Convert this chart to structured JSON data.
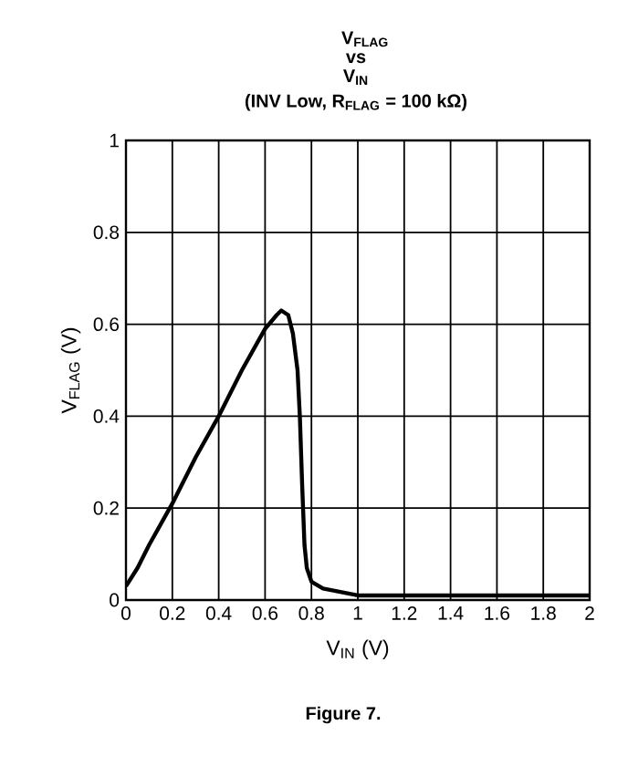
{
  "chart_data": {
    "type": "line",
    "title": "V$_{FLAG}$ vs V$_{IN}$",
    "subtitle": "(INV Low, R$_{FLAG}$ = 100 kΩ)",
    "xlabel": "V$_{IN}$ (V)",
    "ylabel": "V$_{FLAG}$ (V)",
    "annotations": [
      "Figure 7."
    ],
    "x": [
      0,
      0.05,
      0.1,
      0.2,
      0.3,
      0.4,
      0.5,
      0.6,
      0.65,
      0.67,
      0.7,
      0.72,
      0.74,
      0.75,
      0.76,
      0.77,
      0.78,
      0.8,
      0.85,
      0.9,
      1,
      1.5,
      2
    ],
    "series": [
      {
        "color": "#000000",
        "values": [
          0.03,
          0.07,
          0.12,
          0.21,
          0.31,
          0.4,
          0.5,
          0.59,
          0.62,
          0.63,
          0.62,
          0.58,
          0.5,
          0.4,
          0.25,
          0.12,
          0.07,
          0.04,
          0.025,
          0.02,
          0.01,
          0.01,
          0.01
        ]
      }
    ],
    "xlim": [
      0,
      2
    ],
    "ylim": [
      0,
      1
    ],
    "xticks": [
      0,
      0.2,
      0.4,
      0.6,
      0.8,
      1,
      1.2,
      1.4,
      1.6,
      1.8,
      2
    ],
    "yticks": [
      0,
      0.2,
      0.4,
      0.6,
      0.8,
      1
    ],
    "grid": true,
    "marker": "none",
    "line_style": "solid"
  }
}
